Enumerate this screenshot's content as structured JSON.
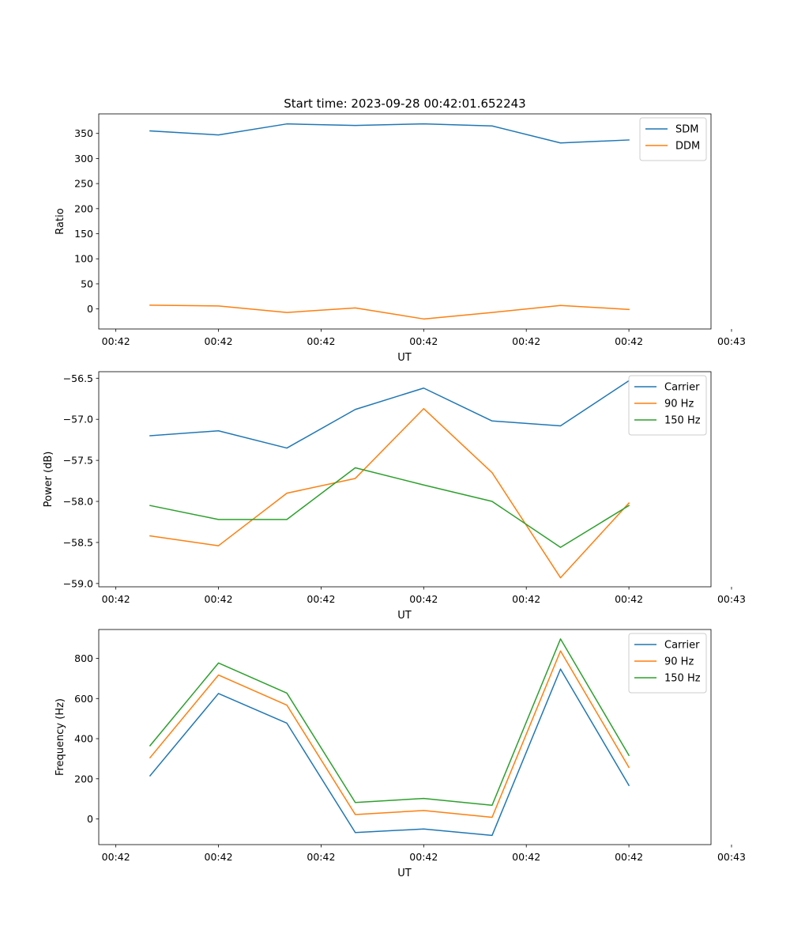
{
  "figure_title": "Start time: 2023-09-28 00:42:01.652243",
  "colors": {
    "blue": "#1f77b4",
    "orange": "#ff7f0e",
    "green": "#2ca02c"
  },
  "chart_data": [
    {
      "type": "line",
      "title": "Start time: 2023-09-28 00:42:01.652243",
      "xlabel": "UT",
      "ylabel": "Ratio",
      "x": [
        1,
        2,
        3,
        4,
        5,
        6,
        7,
        8
      ],
      "xlim": [
        0.25,
        9.2
      ],
      "xticks": [
        0.5,
        2,
        3.5,
        5,
        6.5,
        8,
        9.5
      ],
      "xtick_labels": [
        "00:42",
        "00:42",
        "00:42",
        "00:42",
        "00:42",
        "00:42",
        "00:43"
      ],
      "ylim": [
        -40,
        389
      ],
      "yticks": [
        0,
        50,
        100,
        150,
        200,
        250,
        300,
        350
      ],
      "ytick_labels": [
        "0",
        "50",
        "100",
        "150",
        "200",
        "250",
        "300",
        "350"
      ],
      "legend_position": "top-right",
      "series": [
        {
          "name": "SDM",
          "color": "#1f77b4",
          "values": [
            355,
            347,
            369,
            366,
            369,
            365,
            331,
            337
          ]
        },
        {
          "name": "DDM",
          "color": "#ff7f0e",
          "values": [
            7.5,
            6,
            -7,
            2,
            -20,
            -7,
            7,
            -1
          ]
        }
      ]
    },
    {
      "type": "line",
      "title": "",
      "xlabel": "UT",
      "ylabel": "Power (dB)",
      "x": [
        1,
        2,
        3,
        4,
        5,
        6,
        7,
        8
      ],
      "xlim": [
        0.25,
        9.2
      ],
      "xticks": [
        0.5,
        2,
        3.5,
        5,
        6.5,
        8,
        9.5
      ],
      "xtick_labels": [
        "00:42",
        "00:42",
        "00:42",
        "00:42",
        "00:42",
        "00:42",
        "00:43"
      ],
      "ylim": [
        -59.04,
        -56.42
      ],
      "yticks": [
        -59.0,
        -58.5,
        -58.0,
        -57.5,
        -57.0,
        -56.5
      ],
      "ytick_labels": [
        "−59.0",
        "−58.5",
        "−58.0",
        "−57.5",
        "−57.0",
        "−56.5"
      ],
      "legend_position": "top-right",
      "series": [
        {
          "name": "Carrier",
          "color": "#1f77b4",
          "values": [
            -57.2,
            -57.14,
            -57.35,
            -56.88,
            -56.62,
            -57.02,
            -57.08,
            -56.53
          ]
        },
        {
          "name": "90 Hz",
          "color": "#ff7f0e",
          "values": [
            -58.42,
            -58.54,
            -57.9,
            -57.72,
            -56.87,
            -57.65,
            -58.93,
            -58.02
          ]
        },
        {
          "name": "150 Hz",
          "color": "#2ca02c",
          "values": [
            -58.05,
            -58.22,
            -58.22,
            -57.59,
            -57.8,
            -58.0,
            -58.56,
            -58.05
          ]
        }
      ]
    },
    {
      "type": "line",
      "title": "",
      "xlabel": "UT",
      "ylabel": "Frequency (Hz)",
      "x": [
        1,
        2,
        3,
        4,
        5,
        6,
        7,
        8
      ],
      "xlim": [
        0.25,
        9.2
      ],
      "xticks": [
        0.5,
        2,
        3.5,
        5,
        6.5,
        8,
        9.5
      ],
      "xtick_labels": [
        "00:42",
        "00:42",
        "00:42",
        "00:42",
        "00:42",
        "00:42",
        "00:43"
      ],
      "ylim": [
        -128,
        944
      ],
      "yticks": [
        0,
        200,
        400,
        600,
        800
      ],
      "ytick_labels": [
        "0",
        "200",
        "400",
        "600",
        "800"
      ],
      "legend_position": "top-right",
      "series": [
        {
          "name": "Carrier",
          "color": "#1f77b4",
          "values": [
            215,
            625,
            477,
            -68,
            -50,
            -82,
            747,
            167
          ]
        },
        {
          "name": "90 Hz",
          "color": "#ff7f0e",
          "values": [
            305,
            717,
            567,
            22,
            42,
            8,
            837,
            257
          ]
        },
        {
          "name": "150 Hz",
          "color": "#2ca02c",
          "values": [
            365,
            777,
            627,
            82,
            102,
            68,
            897,
            317
          ]
        }
      ]
    }
  ]
}
